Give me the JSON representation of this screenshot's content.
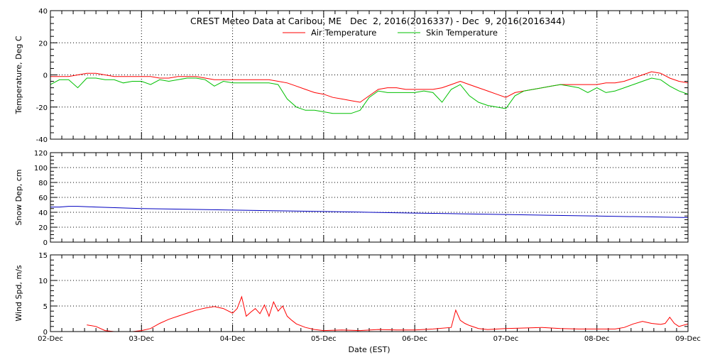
{
  "chart_data": {
    "type": "line",
    "title": "CREST Meteo Data at Caribou, ME   Dec  2, 2016(2016337) - Dec  9, 2016(2016344)",
    "xlabel": "Date (EST)",
    "x_ticks": [
      "02-Dec",
      "03-Dec",
      "04-Dec",
      "05-Dec",
      "06-Dec",
      "07-Dec",
      "08-Dec",
      "09-Dec"
    ],
    "xlim": [
      0,
      7
    ],
    "grid": true,
    "legend_position": "top-center",
    "panels": [
      {
        "ylabel": "Temperature, Deg C",
        "ylim": [
          -40,
          40
        ],
        "y_ticks": [
          "-40",
          "-20",
          "0",
          "20",
          "40"
        ],
        "series": [
          {
            "name": "Air Temperature",
            "color": "#ff0000",
            "x": [
              0,
              0.1,
              0.2,
              0.3,
              0.4,
              0.5,
              0.6,
              0.7,
              0.8,
              0.9,
              1.0,
              1.1,
              1.2,
              1.3,
              1.4,
              1.5,
              1.6,
              1.7,
              1.8,
              1.9,
              2.0,
              2.1,
              2.2,
              2.3,
              2.4,
              2.5,
              2.6,
              2.7,
              2.8,
              2.9,
              3.0,
              3.1,
              3.2,
              3.3,
              3.4,
              3.5,
              3.6,
              3.7,
              3.8,
              3.9,
              4.0,
              4.1,
              4.2,
              4.3,
              4.4,
              4.5,
              4.6,
              4.7,
              4.8,
              4.9,
              5.0,
              5.1,
              5.2,
              5.3,
              5.4,
              5.5,
              5.6,
              5.7,
              5.8,
              5.9,
              6.0,
              6.1,
              6.2,
              6.3,
              6.4,
              6.5,
              6.6,
              6.7,
              6.8,
              6.9,
              7.0
            ],
            "y": [
              -1,
              -1,
              -1,
              0,
              1,
              1,
              0,
              -1,
              -1,
              -1,
              -1,
              -1,
              -2,
              -2,
              -1,
              -1,
              -1,
              -2,
              -3,
              -3,
              -3,
              -3,
              -3,
              -3,
              -3,
              -4,
              -5,
              -7,
              -9,
              -11,
              -12,
              -14,
              -15,
              -16,
              -17,
              -13,
              -9,
              -8,
              -8,
              -9,
              -9,
              -9,
              -9,
              -8,
              -6,
              -4,
              -6,
              -8,
              -10,
              -12,
              -14,
              -11,
              -10,
              -9,
              -8,
              -7,
              -6,
              -6,
              -6,
              -6,
              -6,
              -5,
              -5,
              -4,
              -2,
              0,
              2,
              1,
              -2,
              -4,
              -5
            ]
          },
          {
            "name": "Skin Temperature",
            "color": "#00c000",
            "x": [
              0,
              0.1,
              0.2,
              0.3,
              0.4,
              0.5,
              0.6,
              0.7,
              0.8,
              0.9,
              1.0,
              1.1,
              1.2,
              1.3,
              1.4,
              1.5,
              1.6,
              1.7,
              1.8,
              1.9,
              2.0,
              2.1,
              2.2,
              2.3,
              2.4,
              2.5,
              2.6,
              2.7,
              2.8,
              2.9,
              3.0,
              3.1,
              3.2,
              3.3,
              3.4,
              3.5,
              3.6,
              3.7,
              3.8,
              3.9,
              4.0,
              4.1,
              4.2,
              4.3,
              4.4,
              4.5,
              4.6,
              4.7,
              4.8,
              4.9,
              5.0,
              5.1,
              5.2,
              5.3,
              5.4,
              5.5,
              5.6,
              5.7,
              5.8,
              5.9,
              6.0,
              6.1,
              6.2,
              6.3,
              6.4,
              6.5,
              6.6,
              6.7,
              6.8,
              6.9,
              7.0
            ],
            "y": [
              -6,
              -3,
              -3,
              -8,
              -2,
              -2,
              -3,
              -3,
              -5,
              -4,
              -4,
              -6,
              -3,
              -4,
              -3,
              -2,
              -2,
              -3,
              -7,
              -4,
              -5,
              -5,
              -5,
              -5,
              -5,
              -6,
              -15,
              -20,
              -22,
              -22,
              -23,
              -24,
              -24,
              -24,
              -22,
              -14,
              -10,
              -11,
              -11,
              -11,
              -11,
              -10,
              -11,
              -17,
              -9,
              -6,
              -13,
              -17,
              -19,
              -20,
              -21,
              -13,
              -10,
              -9,
              -8,
              -7,
              -6,
              -7,
              -8,
              -11,
              -8,
              -11,
              -10,
              -8,
              -6,
              -4,
              -2,
              -3,
              -7,
              -10,
              -12
            ]
          }
        ]
      },
      {
        "ylabel": "Snow Dep, cm",
        "ylim": [
          0,
          120
        ],
        "y_ticks": [
          "0",
          "20",
          "40",
          "60",
          "80",
          "100",
          "120"
        ],
        "series": [
          {
            "color": "#0000c0",
            "x": [
              0,
              0.1,
              0.2,
              0.3,
              0.5,
              1.0,
              1.5,
              2.0,
              2.5,
              3.0,
              3.5,
              4.0,
              4.5,
              5.0,
              5.5,
              6.0,
              6.5,
              7.0
            ],
            "y": [
              47,
              47,
              48,
              48,
              47,
              45,
              44,
              43,
              42,
              41,
              40,
              39,
              38,
              37,
              36,
              35,
              34,
              33
            ]
          }
        ]
      },
      {
        "ylabel": "Wind Spd, m/s",
        "ylim": [
          0,
          15
        ],
        "y_ticks": [
          "0",
          "5",
          "10",
          "15"
        ],
        "series": [
          {
            "color": "#ff0000",
            "x": [
              0.4,
              0.5,
              0.6,
              0.7,
              0.8,
              0.9,
              1.0,
              1.1,
              1.2,
              1.3,
              1.4,
              1.5,
              1.6,
              1.7,
              1.8,
              1.9,
              2.0,
              2.05,
              2.1,
              2.15,
              2.2,
              2.25,
              2.3,
              2.35,
              2.4,
              2.45,
              2.5,
              2.55,
              2.6,
              2.65,
              2.7,
              2.8,
              2.9,
              3.0,
              3.2,
              3.4,
              3.6,
              3.8,
              4.0,
              4.2,
              4.4,
              4.45,
              4.5,
              4.55,
              4.6,
              4.7,
              4.8,
              5.0,
              5.2,
              5.4,
              5.6,
              5.8,
              6.0,
              6.2,
              6.3,
              6.4,
              6.5,
              6.6,
              6.7,
              6.75,
              6.8,
              6.85,
              6.9,
              7.0
            ],
            "y": [
              1.3,
              1.0,
              0.2,
              0,
              0,
              0,
              0.2,
              0.6,
              1.6,
              2.4,
              3.0,
              3.6,
              4.2,
              4.6,
              4.9,
              4.5,
              3.6,
              4.5,
              6.8,
              3.0,
              3.8,
              4.5,
              3.5,
              5.2,
              3.0,
              5.8,
              4.0,
              5.0,
              3.0,
              2.2,
              1.5,
              0.8,
              0.4,
              0.2,
              0.3,
              0.2,
              0.4,
              0.3,
              0.3,
              0.5,
              0.8,
              4.2,
              2.2,
              1.6,
              1.2,
              0.6,
              0.4,
              0.6,
              0.7,
              0.8,
              0.6,
              0.5,
              0.5,
              0.5,
              0.8,
              1.5,
              2.0,
              1.6,
              1.4,
              1.6,
              2.8,
              1.6,
              1.0,
              1.5
            ]
          }
        ]
      }
    ]
  }
}
